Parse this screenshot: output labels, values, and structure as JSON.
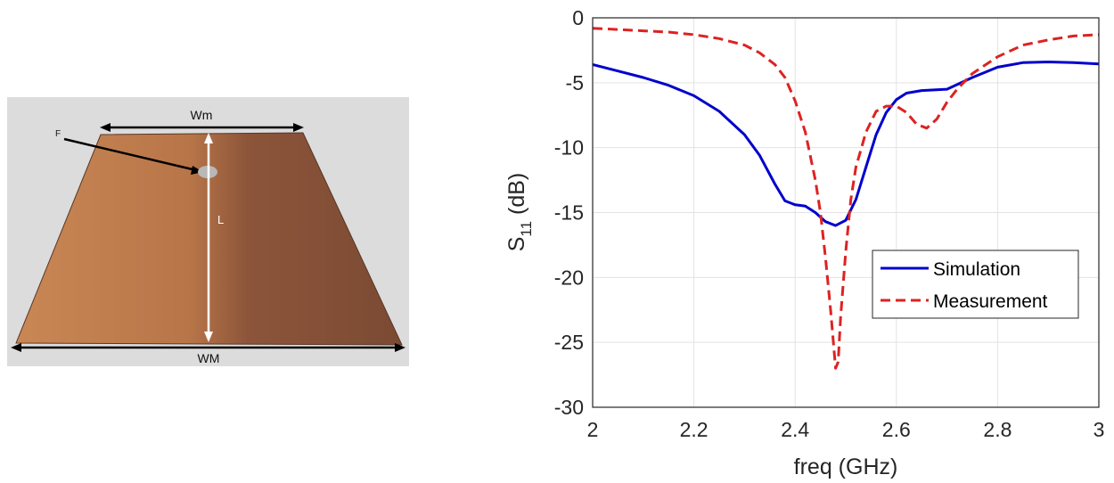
{
  "photo": {
    "labels": {
      "wm": "Wm",
      "f": "F",
      "l": "L",
      "wM": "WM"
    },
    "colors": {
      "background": "#dcdcdc",
      "copper_light": "#c98755",
      "copper_dark": "#7b4a33"
    }
  },
  "chart_data": {
    "type": "line",
    "xlabel": "freq (GHz)",
    "ylabel_main": "S",
    "ylabel_sub": "11",
    "ylabel_tail": " (dB)",
    "xlim": [
      2,
      3
    ],
    "ylim": [
      -30,
      0
    ],
    "xticks": [
      2,
      2.2,
      2.4,
      2.6,
      2.8,
      3
    ],
    "xtick_labels": [
      "2",
      "2.2",
      "2.4",
      "2.6",
      "2.8",
      "3"
    ],
    "yticks": [
      0,
      -5,
      -10,
      -15,
      -20,
      -25,
      -30
    ],
    "ytick_labels": [
      "0",
      "-5",
      "-10",
      "-15",
      "-20",
      "-25",
      "-30"
    ],
    "grid": true,
    "legend_position": "right-center",
    "series": [
      {
        "name": "Simulation",
        "color": "#0000cc",
        "style": "solid",
        "x": [
          2.0,
          2.05,
          2.1,
          2.15,
          2.2,
          2.25,
          2.3,
          2.33,
          2.36,
          2.38,
          2.4,
          2.42,
          2.44,
          2.46,
          2.48,
          2.5,
          2.52,
          2.54,
          2.56,
          2.58,
          2.6,
          2.62,
          2.65,
          2.7,
          2.75,
          2.8,
          2.85,
          2.9,
          2.95,
          3.0
        ],
        "y": [
          -3.6,
          -4.1,
          -4.6,
          -5.2,
          -6.0,
          -7.2,
          -9.0,
          -10.6,
          -12.8,
          -14.1,
          -14.4,
          -14.5,
          -15.0,
          -15.7,
          -16.0,
          -15.6,
          -14.0,
          -11.5,
          -9.0,
          -7.3,
          -6.3,
          -5.8,
          -5.6,
          -5.5,
          -4.6,
          -3.8,
          -3.45,
          -3.4,
          -3.45,
          -3.55
        ]
      },
      {
        "name": "Measurement",
        "color": "#dd2222",
        "style": "dashed",
        "x": [
          2.0,
          2.05,
          2.1,
          2.15,
          2.2,
          2.25,
          2.3,
          2.33,
          2.36,
          2.38,
          2.4,
          2.42,
          2.44,
          2.45,
          2.46,
          2.47,
          2.48,
          2.485,
          2.49,
          2.5,
          2.51,
          2.52,
          2.54,
          2.56,
          2.58,
          2.6,
          2.62,
          2.64,
          2.66,
          2.68,
          2.7,
          2.72,
          2.75,
          2.8,
          2.85,
          2.9,
          2.95,
          3.0
        ],
        "y": [
          -0.8,
          -0.9,
          -1.0,
          -1.1,
          -1.3,
          -1.6,
          -2.1,
          -2.7,
          -3.6,
          -4.6,
          -6.4,
          -8.8,
          -12.5,
          -15.0,
          -18.5,
          -22.5,
          -27.0,
          -26.5,
          -23.0,
          -18.0,
          -14.0,
          -11.5,
          -8.8,
          -7.2,
          -6.8,
          -6.8,
          -7.3,
          -8.2,
          -8.5,
          -7.8,
          -6.5,
          -5.5,
          -4.3,
          -3.0,
          -2.1,
          -1.7,
          -1.4,
          -1.3
        ]
      }
    ]
  }
}
